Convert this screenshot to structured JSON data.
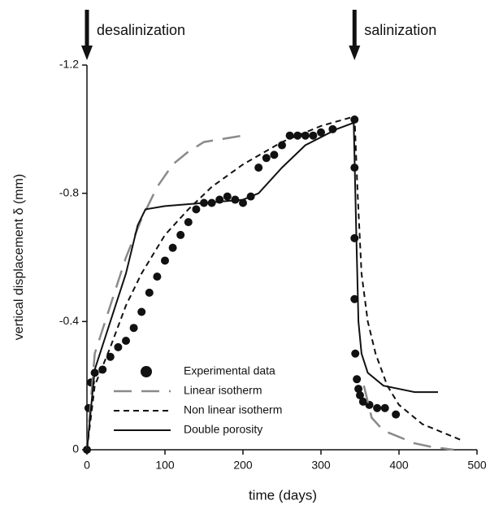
{
  "chart_data": {
    "type": "line",
    "x_label": "time (days)",
    "y_label": "vertical displacement δ (mm)",
    "xlim": [
      0,
      500
    ],
    "ylim": [
      0,
      -1.2
    ],
    "xticks": [
      0,
      100,
      200,
      300,
      400,
      500
    ],
    "yticks": [
      0,
      -0.4,
      -0.8,
      -1.2
    ],
    "legend": "lower left",
    "annotations": [
      {
        "text": "desalinization",
        "x": 0
      },
      {
        "text": "salinization",
        "x": 343
      }
    ],
    "series": [
      {
        "name": "Experimental data",
        "style": "scatter",
        "color": "#111111",
        "x": [
          0,
          2,
          5,
          10,
          20,
          30,
          40,
          50,
          60,
          70,
          80,
          90,
          100,
          110,
          120,
          130,
          140,
          150,
          160,
          170,
          180,
          190,
          200,
          210,
          220,
          230,
          240,
          250,
          260,
          270,
          280,
          290,
          300,
          315,
          343,
          343,
          343,
          343,
          344,
          346,
          348,
          350,
          354,
          362,
          372,
          382,
          396
        ],
        "values": [
          0,
          -0.13,
          -0.21,
          -0.24,
          -0.25,
          -0.29,
          -0.32,
          -0.34,
          -0.38,
          -0.43,
          -0.49,
          -0.54,
          -0.59,
          -0.63,
          -0.67,
          -0.71,
          -0.75,
          -0.77,
          -0.77,
          -0.78,
          -0.79,
          -0.78,
          -0.77,
          -0.79,
          -0.88,
          -0.91,
          -0.92,
          -0.95,
          -0.98,
          -0.98,
          -0.98,
          -0.98,
          -0.99,
          -1.0,
          -1.03,
          -0.88,
          -0.66,
          -0.47,
          -0.3,
          -0.22,
          -0.19,
          -0.17,
          -0.15,
          -0.14,
          -0.13,
          -0.13,
          -0.11
        ]
      },
      {
        "name": "Linear isotherm",
        "style": "line",
        "dash": "long",
        "color": "#8a8a8a",
        "x": [
          0,
          10,
          30,
          50,
          70,
          90,
          110,
          130,
          150,
          200,
          250,
          355,
          365,
          380,
          400,
          420,
          440,
          470
        ],
        "values": [
          0,
          -0.3,
          -0.45,
          -0.6,
          -0.72,
          -0.82,
          -0.89,
          -0.93,
          -0.96,
          -0.98,
          null,
          -0.2,
          -0.1,
          -0.06,
          -0.04,
          -0.02,
          -0.01,
          0
        ]
      },
      {
        "name": "Non linear isotherm",
        "style": "line",
        "dash": "short",
        "color": "#111111",
        "x": [
          0,
          10,
          30,
          50,
          70,
          100,
          130,
          160,
          200,
          250,
          300,
          343,
          347,
          352,
          360,
          370,
          385,
          400,
          430,
          460,
          480
        ],
        "values": [
          0,
          -0.2,
          -0.32,
          -0.45,
          -0.55,
          -0.67,
          -0.75,
          -0.82,
          -0.89,
          -0.96,
          -1.01,
          -1.04,
          -0.8,
          -0.55,
          -0.4,
          -0.3,
          -0.2,
          -0.14,
          -0.08,
          -0.05,
          -0.03
        ]
      },
      {
        "name": "Double porosity",
        "style": "line",
        "dash": "solid",
        "color": "#111111",
        "x": [
          0,
          10,
          30,
          50,
          65,
          75,
          100,
          150,
          200,
          220,
          250,
          280,
          320,
          342,
          345,
          348,
          352,
          360,
          380,
          420,
          450
        ],
        "values": [
          0,
          -0.25,
          -0.4,
          -0.55,
          -0.7,
          -0.75,
          -0.76,
          -0.77,
          -0.78,
          -0.8,
          -0.88,
          -0.95,
          -1.0,
          -1.02,
          -0.7,
          -0.4,
          -0.3,
          -0.24,
          -0.2,
          -0.18,
          -0.18
        ]
      }
    ]
  }
}
